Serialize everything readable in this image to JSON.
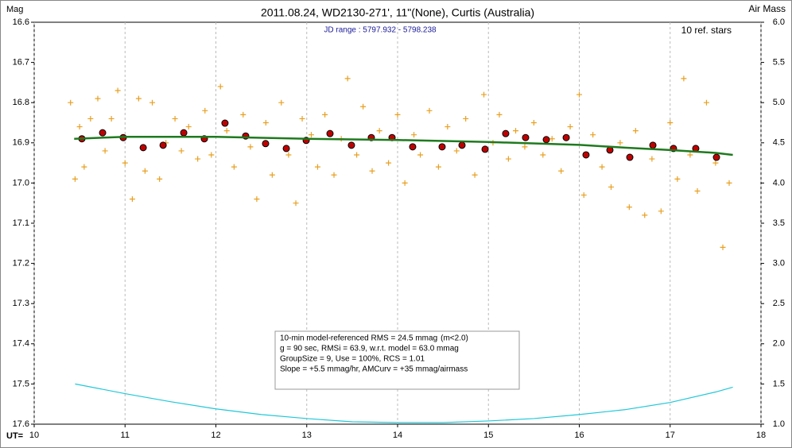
{
  "chart_data": {
    "type": "scatter",
    "title": "2011.08.24, WD2130-271', 11\"(None), Curtis (Australia)",
    "y_label": "Mag",
    "y2_label": "Air Mass",
    "x_label": "UT=",
    "subtitle": "JD range : 5797.932 - 5798.238",
    "note": "10 ref. stars",
    "info": [
      {
        "text": "10-min model-referenced RMS = 24.5 mmag",
        "color": "#b00000"
      },
      {
        "text": "(m<2.0)",
        "color": "#000000"
      },
      {
        "text": "g = 90 sec, RMSi = 63.9, w.r.t. model = 63.0 mmag",
        "color": "#000000"
      },
      {
        "text": "GroupSize = 9, Use = 100%, RCS = 1.01",
        "color": "#000000"
      },
      {
        "text": "Slope = +5.5 mmag/hr, AMCurv = +35 mmag/airmass",
        "color": "#000000"
      }
    ],
    "xlim": [
      10,
      18
    ],
    "xticks": [
      10,
      11,
      12,
      13,
      14,
      15,
      16,
      17,
      18
    ],
    "ylim": [
      16.6,
      17.6
    ],
    "y_inverted": true,
    "yticks": [
      16.6,
      16.7,
      16.8,
      16.9,
      {
        "value": 17,
        "label": "17.0"
      },
      17.1,
      17.2,
      17.3,
      17.4,
      17.5,
      17.6
    ],
    "y2lim": [
      1,
      6
    ],
    "y2ticks": [
      {
        "value": 1,
        "label": "1.0"
      },
      1.5,
      {
        "value": 2,
        "label": "2.0"
      },
      2.5,
      {
        "value": 3,
        "label": "3.0"
      },
      3.5,
      {
        "value": 4,
        "label": "4.0"
      },
      4.5,
      {
        "value": 5,
        "label": "5.0"
      },
      5.5,
      {
        "value": 6,
        "label": "6.0"
      }
    ],
    "grid": true,
    "series": [
      {
        "color": "#e8a020",
        "mode": "plus",
        "x": [
          10.4,
          10.45,
          10.5,
          10.55,
          10.62,
          10.7,
          10.78,
          10.85,
          10.92,
          11.0,
          11.08,
          11.15,
          11.22,
          11.3,
          11.38,
          11.45,
          11.55,
          11.62,
          11.7,
          11.8,
          11.88,
          11.95,
          12.05,
          12.12,
          12.2,
          12.3,
          12.38,
          12.45,
          12.55,
          12.62,
          12.72,
          12.8,
          12.88,
          12.95,
          13.05,
          13.12,
          13.2,
          13.3,
          13.38,
          13.45,
          13.55,
          13.62,
          13.72,
          13.8,
          13.9,
          14.0,
          14.08,
          14.18,
          14.25,
          14.35,
          14.45,
          14.55,
          14.65,
          14.75,
          14.85,
          14.95,
          15.05,
          15.12,
          15.22,
          15.3,
          15.4,
          15.5,
          15.6,
          15.7,
          15.8,
          15.9,
          16.0,
          16.05,
          16.15,
          16.25,
          16.35,
          16.45,
          16.55,
          16.62,
          16.72,
          16.8,
          16.9,
          17.0,
          17.08,
          17.15,
          17.22,
          17.3,
          17.4,
          17.5,
          17.58,
          17.65
        ],
        "values": [
          16.8,
          16.99,
          16.86,
          16.96,
          16.84,
          16.79,
          16.92,
          16.84,
          16.77,
          16.95,
          17.04,
          16.79,
          16.97,
          16.8,
          16.99,
          16.9,
          16.84,
          16.92,
          16.86,
          16.94,
          16.82,
          16.93,
          16.76,
          16.87,
          16.96,
          16.83,
          16.91,
          17.04,
          16.85,
          16.98,
          16.8,
          16.93,
          17.05,
          16.84,
          16.88,
          16.96,
          16.83,
          16.98,
          16.89,
          16.74,
          16.93,
          16.81,
          16.97,
          16.87,
          16.95,
          16.83,
          17.0,
          16.88,
          16.93,
          16.82,
          16.96,
          16.86,
          16.92,
          16.84,
          16.98,
          16.78,
          16.9,
          16.83,
          16.94,
          16.87,
          16.91,
          16.85,
          16.93,
          16.89,
          16.97,
          16.86,
          16.78,
          17.03,
          16.88,
          16.96,
          17.01,
          16.9,
          17.06,
          16.87,
          17.08,
          16.94,
          17.07,
          16.85,
          16.99,
          16.74,
          16.93,
          17.02,
          16.8,
          16.95,
          17.16,
          17.0
        ]
      },
      {
        "color": "#c00000",
        "mode": "circle",
        "x": [
          10.525,
          10.753,
          10.98,
          11.2,
          11.419,
          11.646,
          11.873,
          12.1,
          12.328,
          12.547,
          12.775,
          12.994,
          13.256,
          13.492,
          13.711,
          13.939,
          14.166,
          14.49,
          14.709,
          14.963,
          15.19,
          15.409,
          15.637,
          15.856,
          16.074,
          16.337,
          16.556,
          16.81,
          17.037,
          17.282,
          17.51
        ],
        "values": [
          16.89,
          16.875,
          16.887,
          16.912,
          16.906,
          16.875,
          16.89,
          16.851,
          16.883,
          16.902,
          16.914,
          16.894,
          16.877,
          16.906,
          16.887,
          16.887,
          16.91,
          16.91,
          16.906,
          16.916,
          16.877,
          16.887,
          16.892,
          16.887,
          16.93,
          16.918,
          16.936,
          16.906,
          16.914,
          16.914,
          16.936
        ]
      },
      {
        "color": "#1e7a1e",
        "mode": "line",
        "x": [
          10.44,
          11,
          12,
          13,
          14,
          15,
          16,
          16.5,
          17,
          17.5,
          17.69
        ],
        "values": [
          16.89,
          16.885,
          16.885,
          16.89,
          16.893,
          16.898,
          16.905,
          16.912,
          16.918,
          16.925,
          16.93
        ]
      },
      {
        "color": "#20c8d8",
        "mode": "line",
        "axis": "y2",
        "x": [
          10.45,
          11,
          11.5,
          12,
          12.5,
          13,
          13.5,
          14,
          14.5,
          15,
          15.5,
          16,
          16.5,
          17,
          17.5,
          17.69
        ],
        "values": [
          1.5,
          1.38,
          1.28,
          1.19,
          1.12,
          1.07,
          1.03,
          1.02,
          1.02,
          1.04,
          1.07,
          1.12,
          1.18,
          1.27,
          1.4,
          1.46
        ]
      }
    ]
  }
}
